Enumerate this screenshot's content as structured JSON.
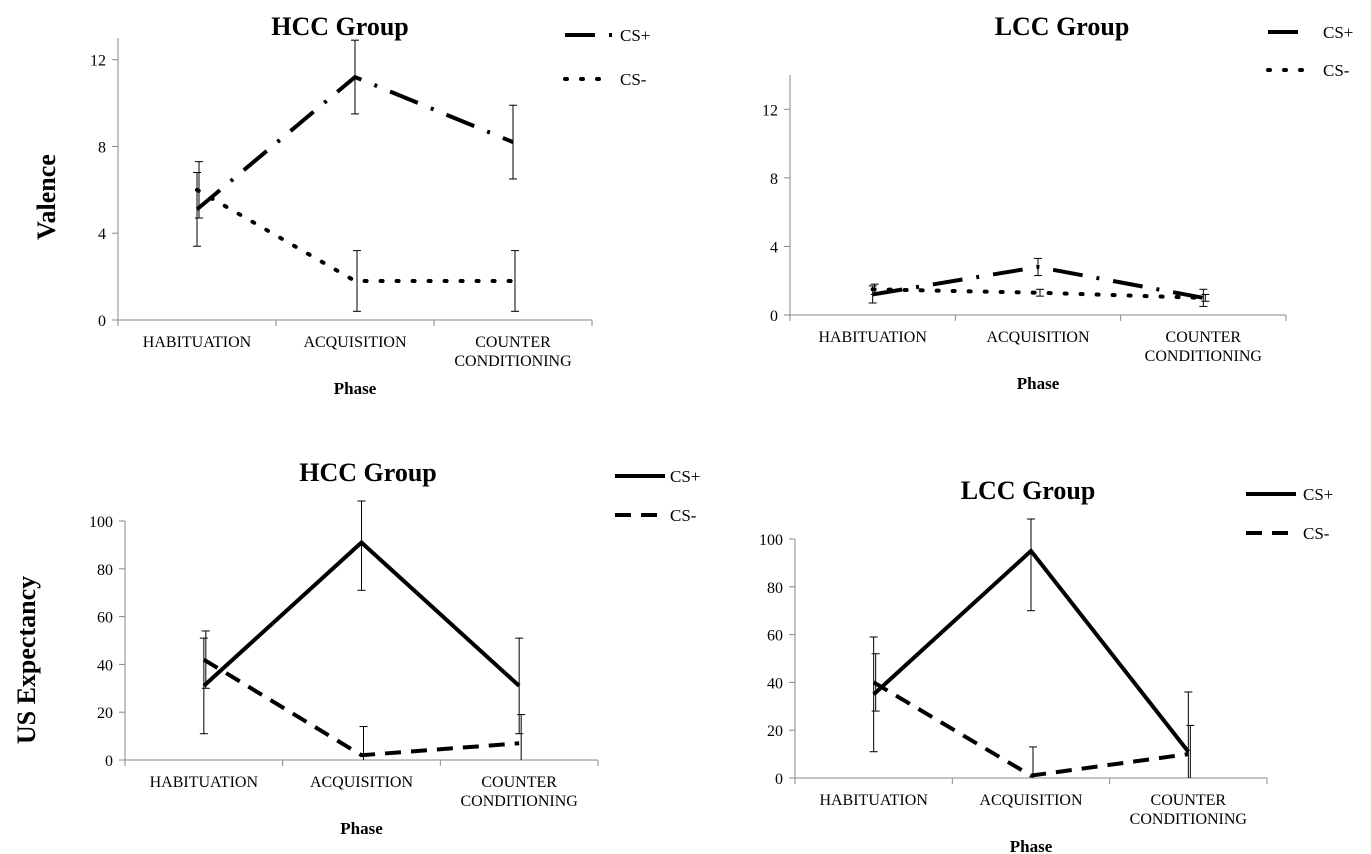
{
  "chart_data": [
    {
      "type": "line",
      "title": "HCC Group",
      "ylabel": "Valence",
      "xlabel": "Phase",
      "categories": [
        [
          "HABITUATION"
        ],
        [
          "ACQUISITION"
        ],
        [
          "COUNTER",
          "CONDITIONING"
        ]
      ],
      "ylim": [
        0,
        13
      ],
      "yticks": [
        0,
        4,
        8,
        12
      ],
      "legend": "top-right",
      "series": [
        {
          "name": "CS+",
          "values": [
            5.1,
            11.2,
            8.2
          ],
          "err": [
            1.7,
            1.7,
            1.7
          ],
          "dash": "dashdot"
        },
        {
          "name": "CS-",
          "values": [
            6.0,
            1.8,
            1.8
          ],
          "err": [
            1.3,
            1.4,
            1.4
          ],
          "dash": "dot"
        }
      ]
    },
    {
      "type": "line",
      "title": "LCC Group",
      "ylabel": "",
      "xlabel": "Phase",
      "categories": [
        [
          "HABITUATION"
        ],
        [
          "ACQUISITION"
        ],
        [
          "COUNTER",
          "CONDITIONING"
        ]
      ],
      "ylim": [
        0,
        14
      ],
      "yticks": [
        0,
        4,
        8,
        12
      ],
      "legend": "top-right",
      "series": [
        {
          "name": "CS+",
          "values": [
            1.2,
            2.8,
            1.0
          ],
          "err": [
            0.5,
            0.5,
            0.5
          ],
          "dash": "dashdot"
        },
        {
          "name": "CS-",
          "values": [
            1.5,
            1.3,
            1.0
          ],
          "err": [
            0.3,
            0.2,
            0.2
          ],
          "dash": "dot"
        }
      ]
    },
    {
      "type": "line",
      "title": "HCC Group",
      "ylabel": "US Expectancy",
      "xlabel": "Phase",
      "categories": [
        [
          "HABITUATION"
        ],
        [
          "ACQUISITION"
        ],
        [
          "COUNTER",
          "CONDITIONING"
        ]
      ],
      "ylim": [
        0,
        100
      ],
      "yticks": [
        0,
        20,
        40,
        60,
        80,
        100
      ],
      "legend": "top-right",
      "series": [
        {
          "name": "CS+",
          "values": [
            31,
            91,
            31
          ],
          "err": [
            20,
            20,
            20
          ],
          "dash": "solid"
        },
        {
          "name": "CS-",
          "values": [
            42,
            2,
            7
          ],
          "err": [
            12,
            12,
            12
          ],
          "dash": "dash"
        }
      ]
    },
    {
      "type": "line",
      "title": "LCC Group",
      "ylabel": "",
      "xlabel": "Phase",
      "categories": [
        [
          "HABITUATION"
        ],
        [
          "ACQUISITION"
        ],
        [
          "COUNTER",
          "CONDITIONING"
        ]
      ],
      "ylim": [
        0,
        100
      ],
      "yticks": [
        0,
        20,
        40,
        60,
        80,
        100
      ],
      "legend": "top-right",
      "series": [
        {
          "name": "CS+",
          "values": [
            35,
            95,
            11
          ],
          "err": [
            24,
            25,
            25
          ],
          "dash": "solid"
        },
        {
          "name": "CS-",
          "values": [
            40,
            1,
            10
          ],
          "err": [
            12,
            12,
            12
          ],
          "dash": "dash"
        }
      ]
    }
  ]
}
